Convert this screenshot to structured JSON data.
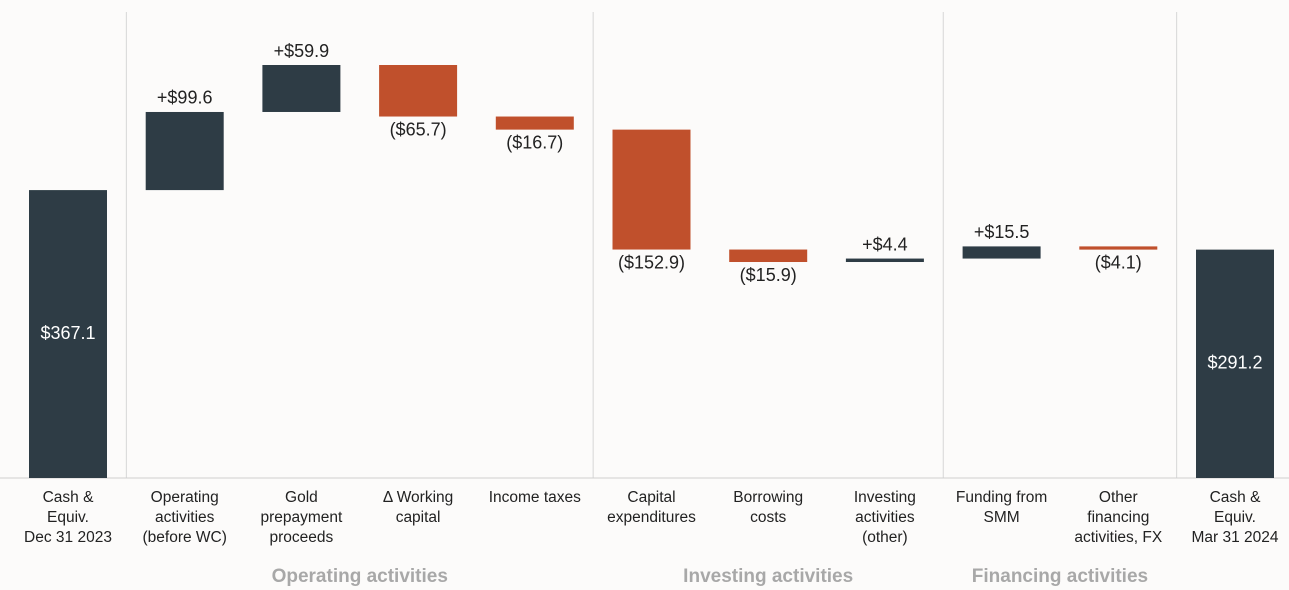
{
  "chart_data": {
    "type": "waterfall",
    "categories": [
      "Cash &\nEquiv.\nDec 31 2023",
      "Operating\nactivities\n(before WC)",
      "Gold\nprepayment\nproceeds",
      "Δ Working\ncapital",
      "Income taxes",
      "Capital\nexpenditures",
      "Borrowing\ncosts",
      "Investing\nactivities\n(other)",
      "Funding from\nSMM",
      "Other\nfinancing\nactivities, FX",
      "Cash &\nEquiv.\nMar 31 2024"
    ],
    "values": [
      367.1,
      99.6,
      59.9,
      -65.7,
      -16.7,
      -152.9,
      -15.9,
      4.4,
      15.5,
      -4.1,
      291.2
    ],
    "value_labels": [
      "$367.1",
      "+$99.6",
      "+$59.9",
      "($65.7)",
      "($16.7)",
      "($152.9)",
      "($15.9)",
      "+$4.4",
      "+$15.5",
      "($4.1)",
      "$291.2"
    ],
    "measure": [
      "absolute",
      "relative",
      "relative",
      "relative",
      "relative",
      "relative",
      "relative",
      "relative",
      "relative",
      "relative",
      "total"
    ],
    "colors": {
      "total": "#2e3c45",
      "increase": "#2e3c45",
      "decrease": "#c0502c"
    },
    "groups": [
      {
        "label": "Operating activities",
        "first": 1,
        "last": 4
      },
      {
        "label": "Investing activities",
        "first": 5,
        "last": 7
      },
      {
        "label": "Financing activities",
        "first": 8,
        "last": 9
      }
    ]
  }
}
